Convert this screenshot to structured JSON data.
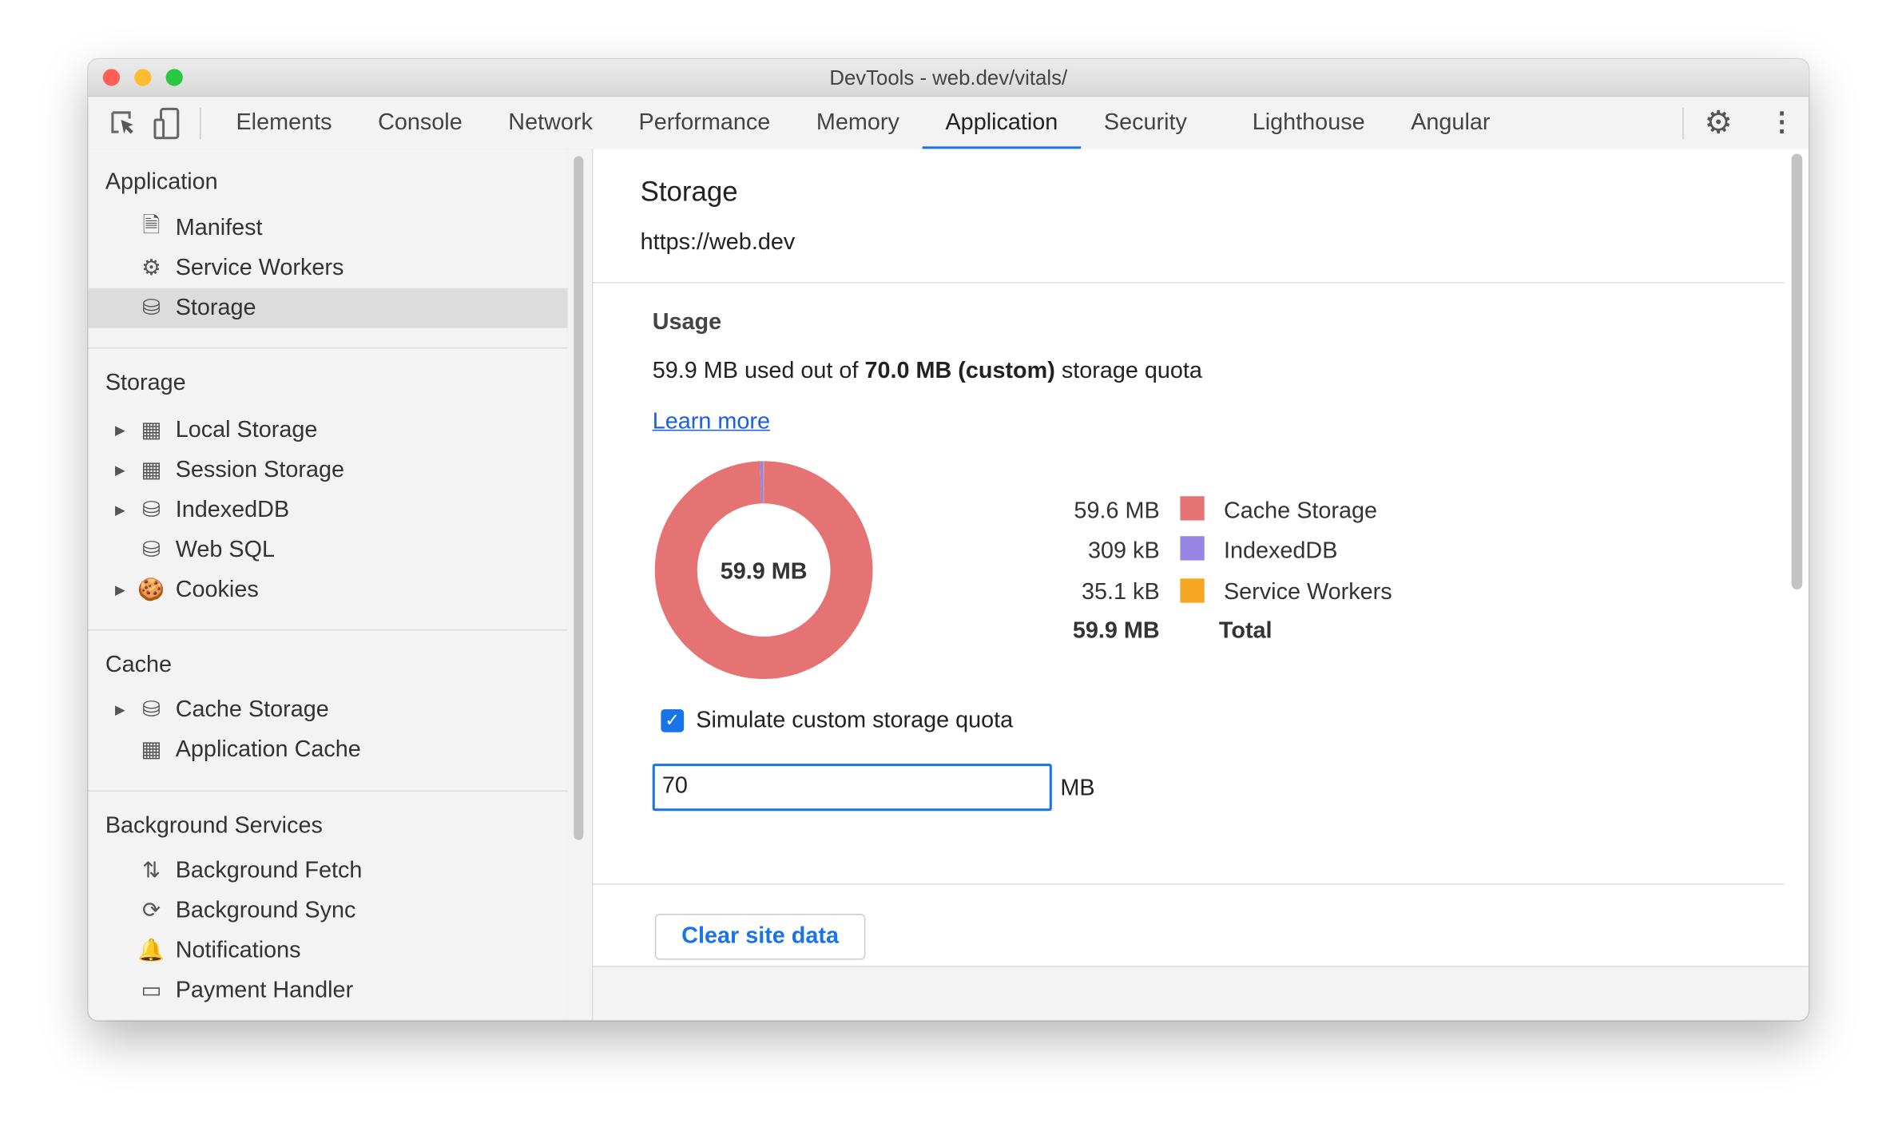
{
  "window": {
    "title": "DevTools - web.dev/vitals/"
  },
  "toolbar": {
    "tabs": [
      {
        "label": "Elements"
      },
      {
        "label": "Console"
      },
      {
        "label": "Network"
      },
      {
        "label": "Performance"
      },
      {
        "label": "Memory"
      },
      {
        "label": "Application",
        "active": true
      },
      {
        "label": "Security"
      },
      {
        "label": "Lighthouse"
      },
      {
        "label": "Angular"
      }
    ]
  },
  "sidebar": {
    "application": {
      "title": "Application",
      "items": [
        {
          "label": "Manifest",
          "icon": "document-icon"
        },
        {
          "label": "Service Workers",
          "icon": "gear-icon"
        },
        {
          "label": "Storage",
          "icon": "database-icon",
          "selected": true
        }
      ]
    },
    "storage": {
      "title": "Storage",
      "items": [
        {
          "label": "Local Storage",
          "icon": "grid-icon"
        },
        {
          "label": "Session Storage",
          "icon": "grid-icon"
        },
        {
          "label": "IndexedDB",
          "icon": "database-icon"
        },
        {
          "label": "Web SQL",
          "icon": "database-icon"
        },
        {
          "label": "Cookies",
          "icon": "cookie-icon"
        }
      ]
    },
    "cache": {
      "title": "Cache",
      "items": [
        {
          "label": "Cache Storage",
          "icon": "database-icon"
        },
        {
          "label": "Application Cache",
          "icon": "grid-icon"
        }
      ]
    },
    "background": {
      "title": "Background Services",
      "items": [
        {
          "label": "Background Fetch",
          "icon": "arrows-updown-icon"
        },
        {
          "label": "Background Sync",
          "icon": "sync-icon"
        },
        {
          "label": "Notifications",
          "icon": "bell-icon"
        },
        {
          "label": "Payment Handler",
          "icon": "card-icon"
        }
      ]
    }
  },
  "main": {
    "title": "Storage",
    "origin": "https://web.dev",
    "usage": {
      "heading": "Usage",
      "used": "59.9 MB",
      "used_out_of": " used out of ",
      "quota": "70.0 MB (custom)",
      "suffix": " storage quota",
      "learn_more": "Learn more"
    },
    "simulate_label": "Simulate custom storage quota",
    "simulate_checked": true,
    "quota_value": "70",
    "quota_unit": "MB",
    "clear_button": "Clear site data"
  },
  "chart_data": {
    "type": "pie",
    "center_label": "59.9 MB",
    "series": [
      {
        "name": "Cache Storage",
        "value_label": "59.6 MB",
        "value_mb": 59.6,
        "color": "#e57373"
      },
      {
        "name": "IndexedDB",
        "value_label": "309 kB",
        "value_mb": 0.309,
        "color": "#9785e3"
      },
      {
        "name": "Service Workers",
        "value_label": "35.1 kB",
        "value_mb": 0.0351,
        "color": "#f5a623"
      }
    ],
    "total": {
      "name": "Total",
      "value_label": "59.9 MB"
    }
  }
}
